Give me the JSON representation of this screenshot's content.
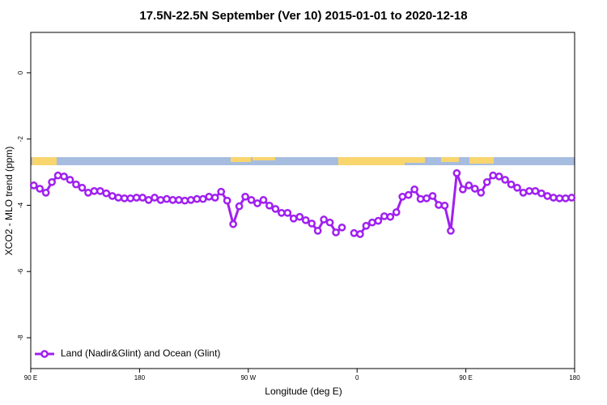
{
  "chart_data": {
    "type": "line",
    "title": "17.5N-22.5N September (Ver 10)   2015-01-01 to 2020-12-18",
    "x_label": "Longitude (deg E)",
    "y_label": "XCO2 - MLO trend (ppm)",
    "xlim": [
      90,
      540
    ],
    "xticks": [
      {
        "value": 90,
        "label": "90 E"
      },
      {
        "value": 180,
        "label": "180"
      },
      {
        "value": 270,
        "label": "90 W"
      },
      {
        "value": 360,
        "label": "0"
      },
      {
        "value": 450,
        "label": "90 E"
      },
      {
        "value": 540,
        "label": "180"
      }
    ],
    "ylim": [
      -8.93,
      1.22
    ],
    "yticks": [
      0,
      -2,
      -4,
      -6,
      -8
    ],
    "legend": "bottom-left",
    "x": [
      92.5,
      97.5,
      102.5,
      107.5,
      112.5,
      117.5,
      122.5,
      127.5,
      132.5,
      137.5,
      142.5,
      147.5,
      152.5,
      157.5,
      162.5,
      167.5,
      172.5,
      177.5,
      182.5,
      187.5,
      192.5,
      197.5,
      202.5,
      207.5,
      212.5,
      217.5,
      222.5,
      227.5,
      232.5,
      237.5,
      242.5,
      247.5,
      252.5,
      257.5,
      262.5,
      267.5,
      272.5,
      277.5,
      282.5,
      287.5,
      292.5,
      297.5,
      302.5,
      307.5,
      312.5,
      317.5,
      322.5,
      327.5,
      332.5,
      337.5,
      342.5,
      347.5,
      352.5,
      357.5,
      362.5,
      367.5,
      372.5,
      377.5,
      382.5,
      387.5,
      392.5,
      397.5,
      402.5,
      407.5,
      412.5,
      417.5,
      422.5,
      427.5,
      432.5,
      437.5,
      442.5,
      447.5,
      452.5,
      457.5,
      462.5,
      467.5,
      472.5,
      477.5,
      482.5,
      487.5,
      492.5,
      497.5,
      502.5,
      507.5,
      512.5,
      517.5,
      522.5,
      527.5,
      532.5,
      537.5
    ],
    "series": [
      {
        "name": "Land (Nadir&Glint) and Ocean (Glint)",
        "color": "#a020f0",
        "values": [
          -3.4,
          -3.5,
          -3.62,
          -3.3,
          -3.1,
          -3.13,
          -3.23,
          -3.37,
          -3.47,
          -3.62,
          -3.57,
          -3.57,
          -3.64,
          -3.72,
          -3.77,
          -3.79,
          -3.79,
          -3.77,
          -3.77,
          -3.84,
          -3.77,
          -3.84,
          -3.81,
          -3.84,
          -3.84,
          -3.86,
          -3.84,
          -3.81,
          -3.81,
          -3.74,
          -3.77,
          -3.59,
          -3.86,
          -4.57,
          -4.03,
          -3.74,
          -3.84,
          -3.94,
          -3.84,
          -4.01,
          -4.11,
          -4.23,
          -4.23,
          -4.4,
          -4.35,
          -4.45,
          -4.55,
          -4.77,
          -4.43,
          -4.52,
          -4.82,
          -4.67,
          null,
          -4.84,
          -4.87,
          -4.62,
          -4.52,
          -4.47,
          -4.33,
          -4.35,
          -4.21,
          -3.74,
          -3.69,
          -3.52,
          -3.81,
          -3.79,
          -3.72,
          -3.99,
          -4.01,
          -4.77,
          -3.03,
          -3.52,
          -3.4,
          -3.5,
          -3.62,
          -3.3,
          -3.1,
          -3.13,
          -3.23,
          -3.37,
          -3.47,
          -3.62,
          -3.57,
          -3.57,
          -3.64,
          -3.72,
          -3.77,
          -3.79,
          -3.79,
          -3.77
        ]
      }
    ]
  }
}
